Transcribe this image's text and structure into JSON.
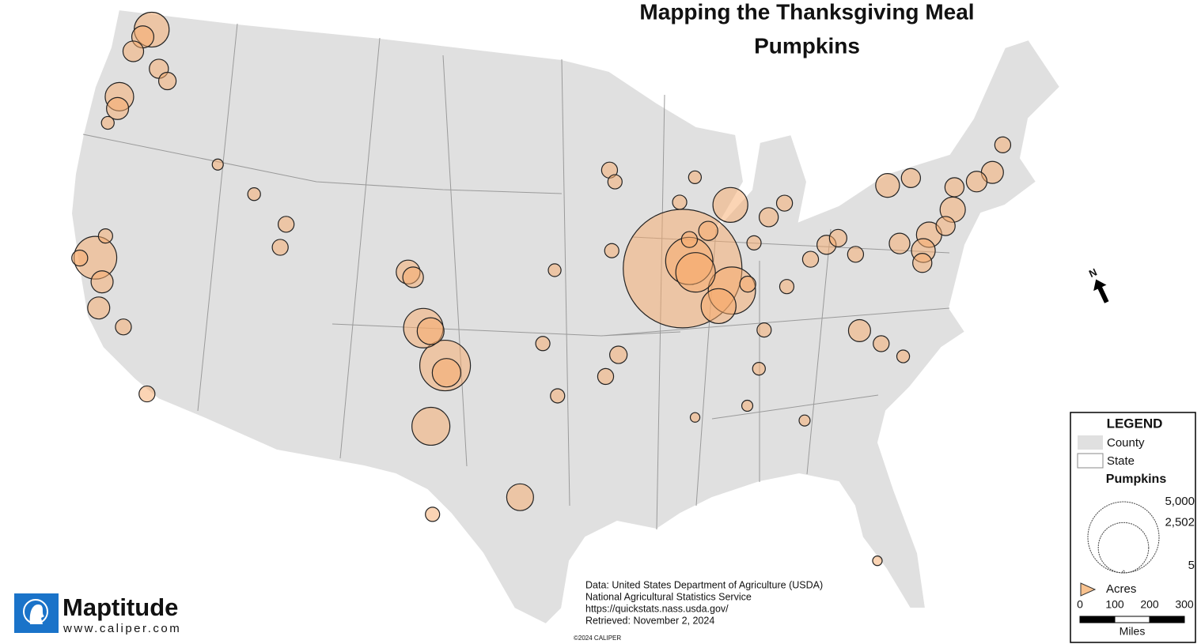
{
  "header": {
    "title": "Mapping the Thanksgiving Meal",
    "subtitle": "Pumpkins"
  },
  "map": {
    "type": "bubble_map",
    "bubbles": [
      {
        "lon": -122.3,
        "lat": 48.4,
        "acres": 1200
      },
      {
        "lon": -122.7,
        "lat": 48.0,
        "acres": 480
      },
      {
        "lon": -123.0,
        "lat": 47.3,
        "acres": 420
      },
      {
        "lon": -121.2,
        "lat": 46.9,
        "acres": 360
      },
      {
        "lon": -120.5,
        "lat": 46.5,
        "acres": 300
      },
      {
        "lon": -123.0,
        "lat": 45.3,
        "acres": 800
      },
      {
        "lon": -122.9,
        "lat": 44.8,
        "acres": 480
      },
      {
        "lon": -123.2,
        "lat": 44.1,
        "acres": 160
      },
      {
        "lon": -121.7,
        "lat": 38.5,
        "acres": 1800
      },
      {
        "lon": -122.5,
        "lat": 38.3,
        "acres": 250
      },
      {
        "lon": -121.5,
        "lat": 39.5,
        "acres": 200
      },
      {
        "lon": -121.0,
        "lat": 37.6,
        "acres": 480
      },
      {
        "lon": -120.8,
        "lat": 36.5,
        "acres": 480
      },
      {
        "lon": -119.3,
        "lat": 36.0,
        "acres": 250
      },
      {
        "lon": -117.3,
        "lat": 33.5,
        "acres": 250
      },
      {
        "lon": -116.4,
        "lat": 43.6,
        "acres": 120
      },
      {
        "lon": -114.0,
        "lat": 42.7,
        "acres": 160
      },
      {
        "lon": -111.9,
        "lat": 41.7,
        "acres": 250
      },
      {
        "lon": -112.0,
        "lat": 40.7,
        "acres": 250
      },
      {
        "lon": -104.8,
        "lat": 40.4,
        "acres": 560
      },
      {
        "lon": -104.5,
        "lat": 40.2,
        "acres": 420
      },
      {
        "lon": -103.7,
        "lat": 38.1,
        "acres": 1540
      },
      {
        "lon": -103.3,
        "lat": 38.0,
        "acres": 710
      },
      {
        "lon": -102.4,
        "lat": 36.6,
        "acres": 2530
      },
      {
        "lon": -102.3,
        "lat": 36.3,
        "acres": 800
      },
      {
        "lon": -102.9,
        "lat": 34.0,
        "acres": 1420
      },
      {
        "lon": -98.3,
        "lat": 31.2,
        "acres": 710
      },
      {
        "lon": -102.5,
        "lat": 30.3,
        "acres": 200
      },
      {
        "lon": -96.5,
        "lat": 35.5,
        "acres": 200
      },
      {
        "lon": -93.5,
        "lat": 45.0,
        "acres": 250
      },
      {
        "lon": -93.2,
        "lat": 44.5,
        "acres": 200
      },
      {
        "lon": -89.5,
        "lat": 43.5,
        "acres": 200
      },
      {
        "lon": -88.5,
        "lat": 44.5,
        "acres": 160
      },
      {
        "lon": -89.6,
        "lat": 40.7,
        "acres": 13900
      },
      {
        "lon": -89.2,
        "lat": 41.0,
        "acres": 2200
      },
      {
        "lon": -88.9,
        "lat": 40.5,
        "acres": 1540
      },
      {
        "lon": -87.0,
        "lat": 39.6,
        "acres": 2200
      },
      {
        "lon": -87.8,
        "lat": 39.0,
        "acres": 1200
      },
      {
        "lon": -86.6,
        "lat": 43.2,
        "acres": 1200
      },
      {
        "lon": -84.5,
        "lat": 42.5,
        "acres": 360
      },
      {
        "lon": -83.5,
        "lat": 43.0,
        "acres": 250
      },
      {
        "lon": -88.0,
        "lat": 42.2,
        "acres": 360
      },
      {
        "lon": -89.1,
        "lat": 41.9,
        "acres": 250
      },
      {
        "lon": -86.1,
        "lat": 39.8,
        "acres": 250
      },
      {
        "lon": -85.5,
        "lat": 41.5,
        "acres": 200
      },
      {
        "lon": -82.5,
        "lat": 40.5,
        "acres": 250
      },
      {
        "lon": -81.5,
        "lat": 41.0,
        "acres": 360
      },
      {
        "lon": -84.0,
        "lat": 39.5,
        "acres": 200
      },
      {
        "lon": -80.8,
        "lat": 41.2,
        "acres": 300
      },
      {
        "lon": -76.3,
        "lat": 40.0,
        "acres": 560
      },
      {
        "lon": -77.5,
        "lat": 40.5,
        "acres": 420
      },
      {
        "lon": -75.8,
        "lat": 40.6,
        "acres": 630
      },
      {
        "lon": -80.0,
        "lat": 40.4,
        "acres": 250
      },
      {
        "lon": -77.5,
        "lat": 43.0,
        "acres": 560
      },
      {
        "lon": -76.1,
        "lat": 43.1,
        "acres": 360
      },
      {
        "lon": -73.8,
        "lat": 42.3,
        "acres": 360
      },
      {
        "lon": -74.2,
        "lat": 41.4,
        "acres": 630
      },
      {
        "lon": -74.8,
        "lat": 40.8,
        "acres": 360
      },
      {
        "lon": -80.5,
        "lat": 37.2,
        "acres": 480
      },
      {
        "lon": -79.5,
        "lat": 36.5,
        "acres": 250
      },
      {
        "lon": -78.5,
        "lat": 35.8,
        "acres": 160
      },
      {
        "lon": -71.5,
        "lat": 42.5,
        "acres": 480
      },
      {
        "lon": -72.5,
        "lat": 42.3,
        "acres": 420
      },
      {
        "lon": -70.5,
        "lat": 43.5,
        "acres": 250
      },
      {
        "lon": -76.5,
        "lat": 39.5,
        "acres": 360
      },
      {
        "lon": -86.0,
        "lat": 36.2,
        "acres": 160
      },
      {
        "lon": -85.5,
        "lat": 37.8,
        "acres": 200
      },
      {
        "lon": -81.5,
        "lat": 27.5,
        "acres": 90
      },
      {
        "lon": -84.0,
        "lat": 33.8,
        "acres": 120
      },
      {
        "lon": -93.5,
        "lat": 41.6,
        "acres": 200
      },
      {
        "lon": -93.3,
        "lat": 37.2,
        "acres": 300
      },
      {
        "lon": -97.3,
        "lat": 37.7,
        "acres": 200
      },
      {
        "lon": -96.7,
        "lat": 40.8,
        "acres": 160
      },
      {
        "lon": -94.0,
        "lat": 36.3,
        "acres": 250
      },
      {
        "lon": -86.8,
        "lat": 34.7,
        "acres": 120
      },
      {
        "lon": -89.5,
        "lat": 34.4,
        "acres": 90
      }
    ]
  },
  "legend": {
    "title": "LEGEND",
    "county": "County",
    "state": "State",
    "layer": "Pumpkins",
    "sizes": [
      {
        "value": 5000,
        "label": "5,000"
      },
      {
        "value": 2502,
        "label": "2,502"
      },
      5
    ],
    "unit": "Acres",
    "scale_ticks": [
      0,
      100,
      200,
      300
    ],
    "scale_unit": "Miles"
  },
  "north": "N",
  "source": [
    "Data: United States Department of Agriculture (USDA)",
    "National Agricultural Statistics Service",
    "https://quickstats.nass.usda.gov/",
    "Retrieved: November 2, 2024"
  ],
  "copyright": "©2024 CALIPER",
  "logo": {
    "name": "Maptitude",
    "url": "www.caliper.com"
  }
}
